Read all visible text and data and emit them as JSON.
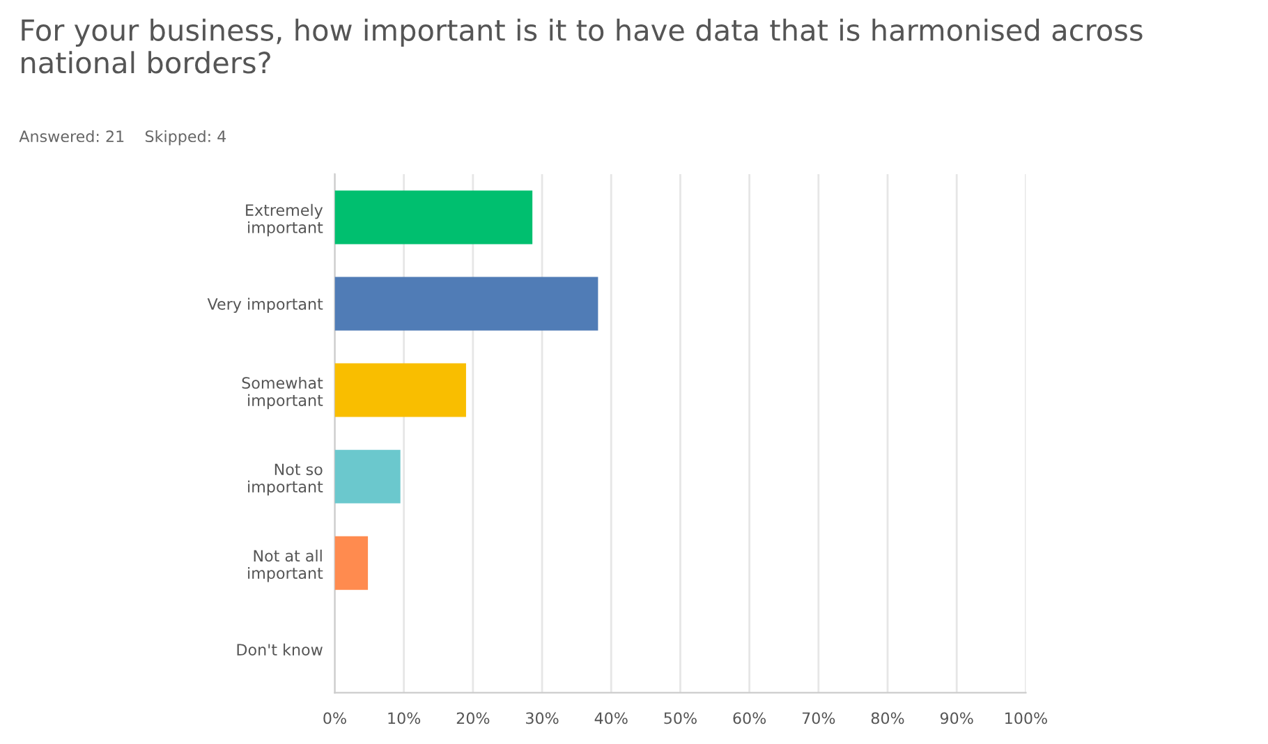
{
  "chart_data": {
    "type": "bar",
    "orientation": "horizontal",
    "title": "For your business, how important is it to have data that is harmonised across national borders?",
    "subtitle": "Answered: 21    Skipped: 4",
    "categories": [
      "Extremely\nimportant",
      "Very important",
      "Somewhat\nimportant",
      "Not so\nimportant",
      "Not at all\nimportant",
      "Don't know"
    ],
    "values": [
      28.6,
      38.1,
      19.0,
      9.5,
      4.8,
      0
    ],
    "colors": [
      "#00bf6f",
      "#507cb6",
      "#f9be00",
      "#6bc8cd",
      "#ff8b4f",
      "#a0a0a0"
    ],
    "xlim": [
      0,
      100
    ],
    "xticks": [
      {
        "value": 0,
        "label": "0%"
      },
      {
        "value": 10,
        "label": "10%"
      },
      {
        "value": 20,
        "label": "20%"
      },
      {
        "value": 30,
        "label": "30%"
      },
      {
        "value": 40,
        "label": "40%"
      },
      {
        "value": 50,
        "label": "50%"
      },
      {
        "value": 60,
        "label": "60%"
      },
      {
        "value": 70,
        "label": "70%"
      },
      {
        "value": 80,
        "label": "80%"
      },
      {
        "value": 90,
        "label": "90%"
      },
      {
        "value": 100,
        "label": "100%"
      }
    ],
    "grid": "x"
  }
}
